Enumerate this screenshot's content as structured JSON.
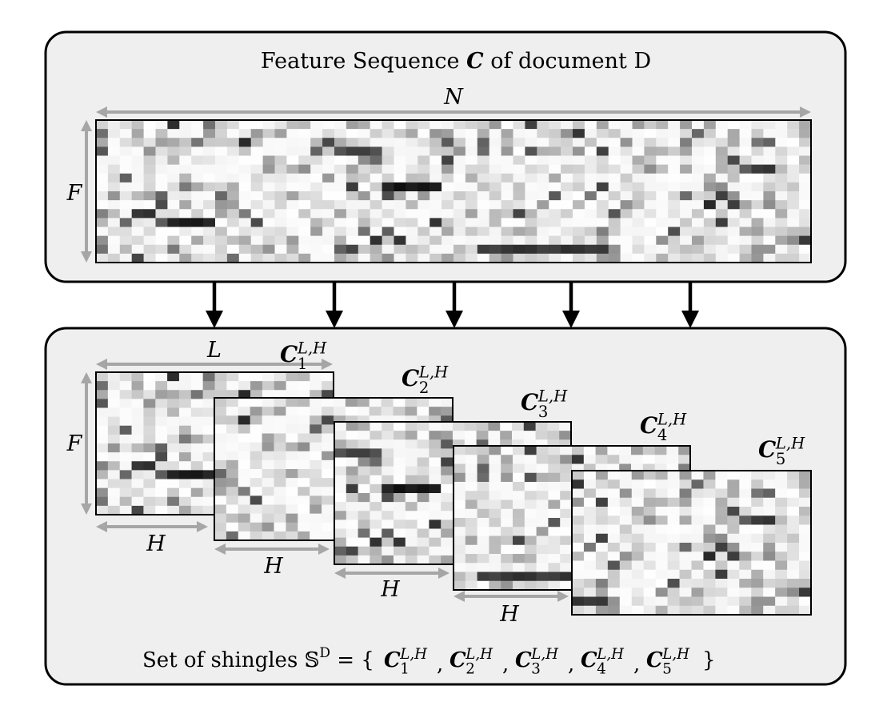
{
  "top_panel": {
    "title_prefix": "Feature Sequence ",
    "title_symbol": "C",
    "title_suffix": " of document D",
    "width_label": "N",
    "height_label": "F"
  },
  "bottom_panel": {
    "length_label": "L",
    "height_label": "F",
    "shingle_width_label": "H",
    "shingle_symbol": "C",
    "shingle_superscript": "L,H",
    "shingles": [
      {
        "index": "1"
      },
      {
        "index": "2"
      },
      {
        "index": "3"
      },
      {
        "index": "4"
      },
      {
        "index": "5"
      }
    ],
    "set_prefix": "Set of shingles ",
    "set_symbol": "𝕊",
    "set_superscript": "D",
    "set_equals": " = {",
    "set_separator": ",",
    "set_close": "}"
  },
  "grid": {
    "rows": 16,
    "cols": 60
  }
}
